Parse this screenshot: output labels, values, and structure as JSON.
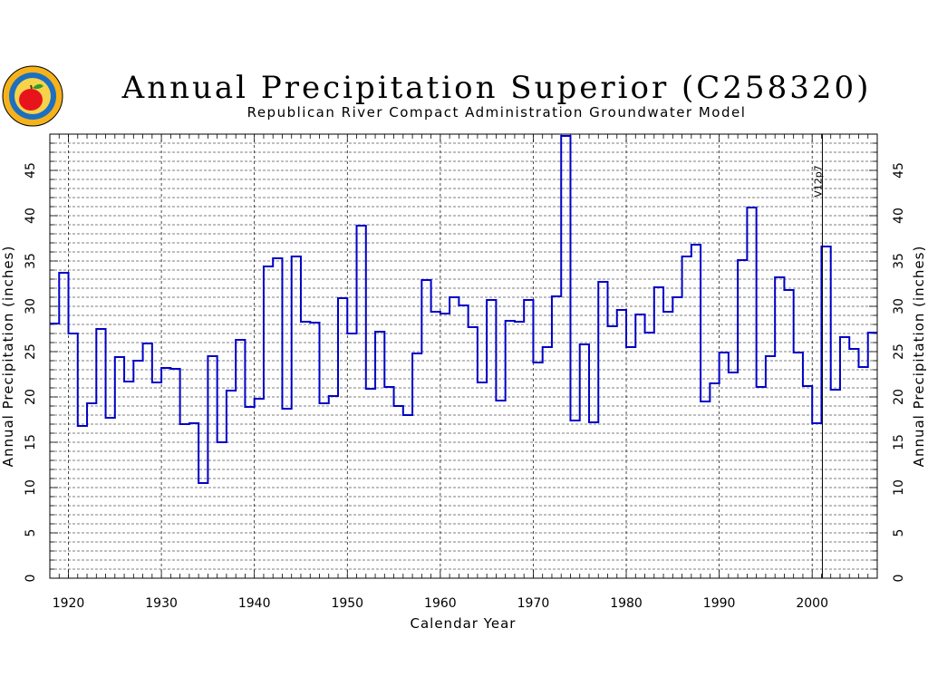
{
  "logo": {
    "name": "republican-river-compact-seal",
    "outer_color": "#f6b21b",
    "ring_color": "#1d6fc0",
    "apple_color": "#e8141c"
  },
  "chart_data": {
    "type": "line",
    "style": "step",
    "title": "Annual Precipitation Superior (C258320)",
    "subtitle": "Republican River Compact Administration Groundwater Model",
    "xlabel": "Calendar Year",
    "ylabel_left": "Annual Precipitation (inches)",
    "ylabel_right": "Annual Precipitation (inches)",
    "xlim": [
      1918,
      2007
    ],
    "ylim": [
      0,
      49
    ],
    "x_ticks": [
      1920,
      1930,
      1940,
      1950,
      1960,
      1970,
      1980,
      1990,
      2000
    ],
    "y_ticks": [
      0,
      5,
      10,
      15,
      20,
      25,
      30,
      35,
      40,
      45
    ],
    "grid": true,
    "series": [
      {
        "color": "#0000c8",
        "x": [
          1918,
          1919,
          1920,
          1921,
          1922,
          1923,
          1924,
          1925,
          1926,
          1927,
          1928,
          1929,
          1930,
          1931,
          1932,
          1933,
          1934,
          1935,
          1936,
          1937,
          1938,
          1939,
          1940,
          1941,
          1942,
          1943,
          1944,
          1945,
          1946,
          1947,
          1948,
          1949,
          1950,
          1951,
          1952,
          1953,
          1954,
          1955,
          1956,
          1957,
          1958,
          1959,
          1960,
          1961,
          1962,
          1963,
          1964,
          1965,
          1966,
          1967,
          1968,
          1969,
          1970,
          1971,
          1972,
          1973,
          1974,
          1975,
          1976,
          1977,
          1978,
          1979,
          1980,
          1981,
          1982,
          1983,
          1984,
          1985,
          1986,
          1987,
          1988,
          1989,
          1990,
          1991,
          1992,
          1993,
          1994,
          1995,
          1996,
          1997,
          1998,
          1999,
          2000,
          2001,
          2002,
          2003,
          2004,
          2005,
          2006
        ],
        "values": [
          28.1,
          33.7,
          27.0,
          16.8,
          19.3,
          27.5,
          17.7,
          24.4,
          21.7,
          24.0,
          25.9,
          21.6,
          23.2,
          23.1,
          17.0,
          17.1,
          10.5,
          24.5,
          15.0,
          20.7,
          26.3,
          18.9,
          19.8,
          34.4,
          35.3,
          18.7,
          35.5,
          28.3,
          28.2,
          19.3,
          20.1,
          30.9,
          27.0,
          38.9,
          20.9,
          27.2,
          21.1,
          19.0,
          18.0,
          24.8,
          32.9,
          29.4,
          29.2,
          31.0,
          30.1,
          27.7,
          21.6,
          30.7,
          19.6,
          28.4,
          28.3,
          30.7,
          23.8,
          25.5,
          31.1,
          48.8,
          17.4,
          25.8,
          17.2,
          32.7,
          27.8,
          29.6,
          25.5,
          29.1,
          27.1,
          32.1,
          29.4,
          31.0,
          35.5,
          36.8,
          19.5,
          21.5,
          24.9,
          22.7,
          35.1,
          40.9,
          21.1,
          24.5,
          33.2,
          31.8,
          24.9,
          21.2,
          17.1,
          36.6,
          20.8,
          26.6,
          25.3,
          23.3,
          27.1
        ]
      }
    ],
    "annotations": [
      {
        "x": 2001,
        "label": "V12p7"
      }
    ]
  }
}
